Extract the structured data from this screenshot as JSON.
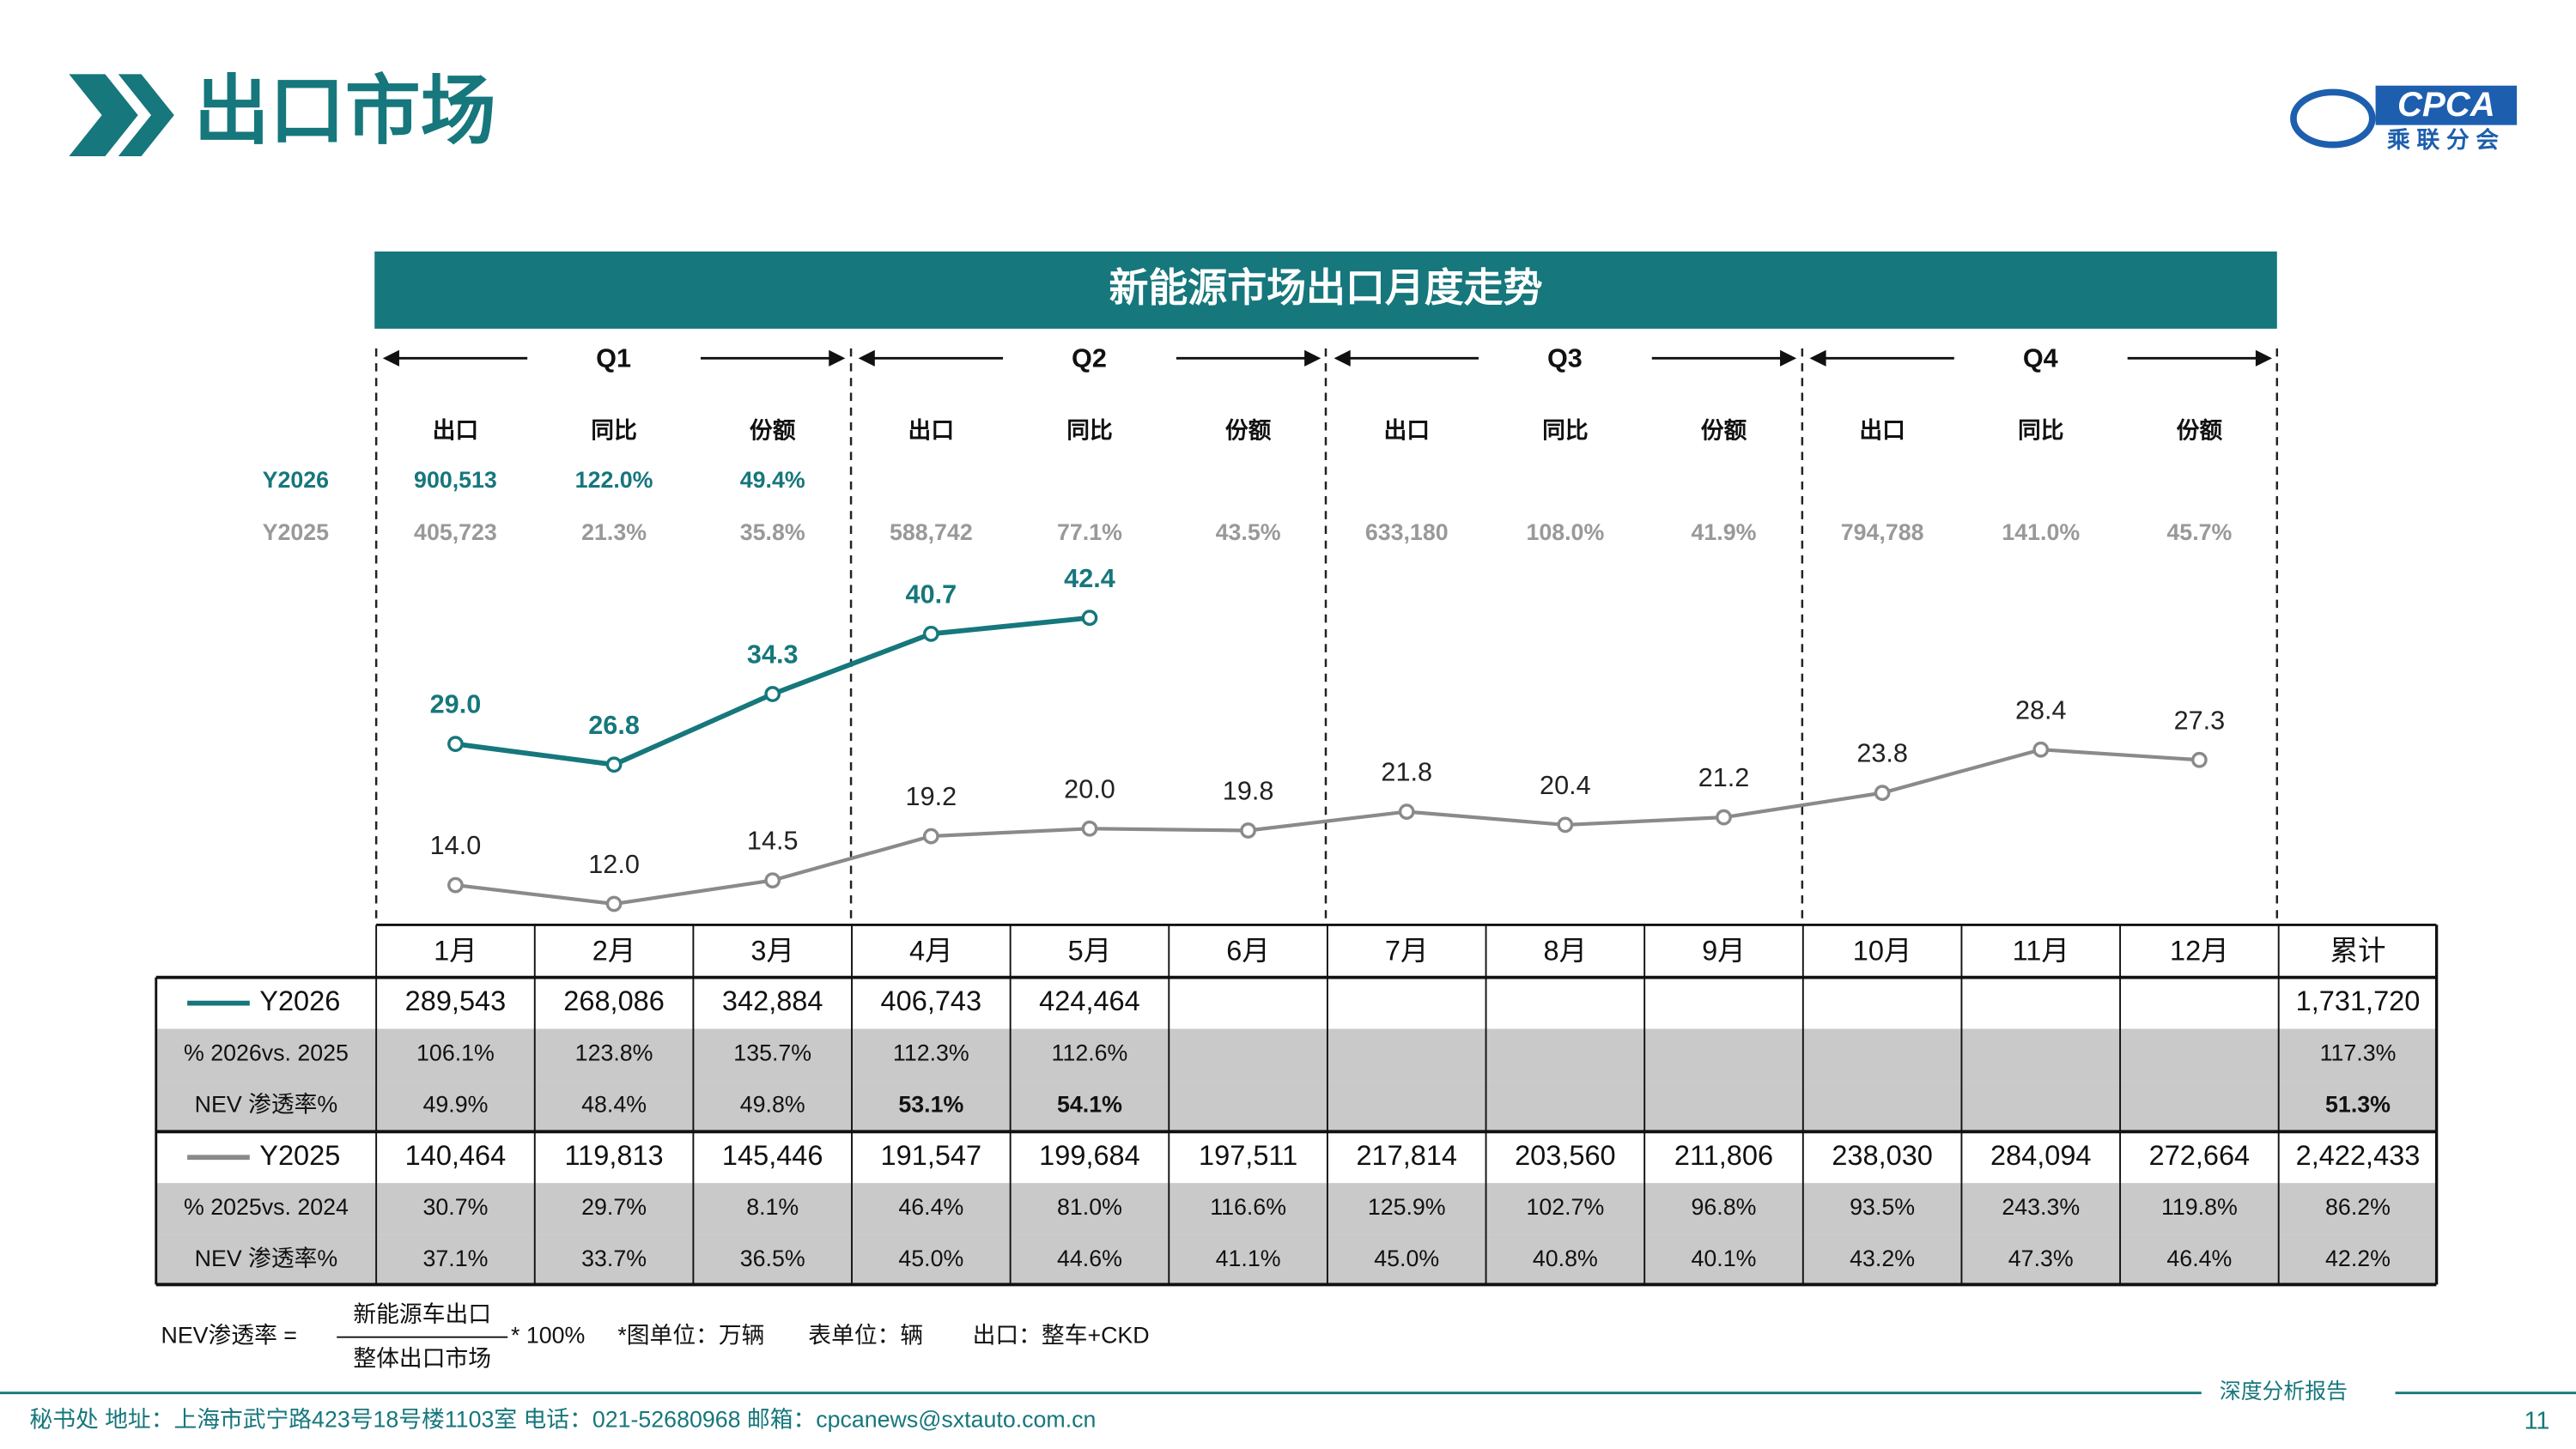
{
  "header": {
    "title": "出口市场",
    "logo_text": "CPCA",
    "logo_subtext": "乘联分会"
  },
  "chart_data": {
    "type": "line",
    "title": "新能源市场出口月度走势",
    "categories": [
      "1月",
      "2月",
      "3月",
      "4月",
      "5月",
      "6月",
      "7月",
      "8月",
      "9月",
      "10月",
      "11月",
      "12月"
    ],
    "series": [
      {
        "name": "Y2026",
        "color": "#16777c",
        "values": [
          29.0,
          26.8,
          34.3,
          40.7,
          42.4,
          null,
          null,
          null,
          null,
          null,
          null,
          null
        ],
        "value_labels": [
          "29.0",
          "26.8",
          "34.3",
          "40.7",
          "42.4",
          null,
          null,
          null,
          null,
          null,
          null,
          null
        ]
      },
      {
        "name": "Y2025",
        "color": "#8a8a8a",
        "values": [
          14.0,
          12.0,
          14.5,
          19.2,
          20.0,
          19.8,
          21.8,
          20.4,
          21.2,
          23.8,
          28.4,
          27.3
        ],
        "value_labels": [
          "14.0",
          "12.0",
          "14.5",
          "19.2",
          "20.0",
          "19.8",
          "21.8",
          "20.4",
          "21.2",
          "23.8",
          "28.4",
          "27.3"
        ]
      }
    ],
    "ylim": [
      0,
      50
    ]
  },
  "quarters": [
    {
      "label": "Q1",
      "headers": [
        "出口",
        "同比",
        "份额"
      ],
      "y2026": [
        "900,513",
        "122.0%",
        "49.4%"
      ],
      "y2025": [
        "405,723",
        "21.3%",
        "35.8%"
      ]
    },
    {
      "label": "Q2",
      "headers": [
        "出口",
        "同比",
        "份额"
      ],
      "y2025": [
        "588,742",
        "77.1%",
        "43.5%"
      ]
    },
    {
      "label": "Q3",
      "headers": [
        "出口",
        "同比",
        "份额"
      ],
      "y2025": [
        "633,180",
        "108.0%",
        "41.9%"
      ]
    },
    {
      "label": "Q4",
      "headers": [
        "出口",
        "同比",
        "份额"
      ],
      "y2025": [
        "794,788",
        "141.0%",
        "45.7%"
      ]
    }
  ],
  "table": {
    "total_header": "累计",
    "rows": [
      {
        "label": "Y2026",
        "cells": [
          "289,543",
          "268,086",
          "342,884",
          "406,743",
          "424,464",
          null,
          null,
          null,
          null,
          null,
          null,
          null,
          "1,731,720"
        ]
      },
      {
        "label": "% 2026vs. 2025",
        "cells": [
          "106.1%",
          "123.8%",
          "135.7%",
          "112.3%",
          "112.6%",
          null,
          null,
          null,
          null,
          null,
          null,
          null,
          "117.3%"
        ]
      },
      {
        "label": "NEV 渗透率%",
        "cells": [
          "49.9%",
          "48.4%",
          "49.8%",
          "53.1%",
          "54.1%",
          null,
          null,
          null,
          null,
          null,
          null,
          null,
          "51.3%"
        ]
      },
      {
        "label": "Y2025",
        "cells": [
          "140,464",
          "119,813",
          "145,446",
          "191,547",
          "199,684",
          "197,511",
          "217,814",
          "203,560",
          "211,806",
          "238,030",
          "284,094",
          "272,664",
          "2,422,433"
        ]
      },
      {
        "label": "% 2025vs. 2024",
        "cells": [
          "30.7%",
          "29.7%",
          "8.1%",
          "46.4%",
          "81.0%",
          "116.6%",
          "125.9%",
          "102.7%",
          "96.8%",
          "93.5%",
          "243.3%",
          "119.8%",
          "86.2%"
        ]
      },
      {
        "label": "NEV 渗透率%",
        "cells": [
          "37.1%",
          "33.7%",
          "36.5%",
          "45.0%",
          "44.6%",
          "41.1%",
          "45.0%",
          "40.8%",
          "40.1%",
          "43.2%",
          "47.3%",
          "46.4%",
          "42.2%"
        ]
      }
    ]
  },
  "notes": {
    "formula_label": "NEV渗透率 =",
    "numerator": "新能源车出口",
    "denominator": "整体出口市场",
    "multiplier": "* 100%",
    "chart_unit": "*图单位：万辆",
    "table_unit": "表单位：辆",
    "export_def": "出口：整车+CKD"
  },
  "footer": {
    "address": "秘书处   地址：上海市武宁路423号18号楼1103室   电话：021-52680968   邮箱：cpcanews@sxtauto.com.cn",
    "report": "深度分析报告",
    "page": "11"
  }
}
